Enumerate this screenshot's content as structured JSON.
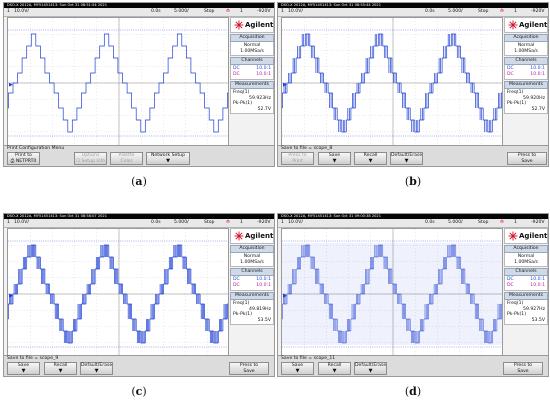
{
  "panels": [
    {
      "id": "a",
      "caption": "a",
      "title": "DSO-X 2012A, MY51451413: Sun Oct 31 08:51:54 2021",
      "status": {
        "ch": "1",
        "volts": "10.0V/",
        "time": "0.0s",
        "timebase": "5.000/",
        "mode": "Stop",
        "trig_ch": "1",
        "trig_level": "-920V"
      },
      "brand": "Agilent",
      "acq_header": "Acquisition",
      "acq_mode": "Normal",
      "acq_rate": "1.00MSa/s",
      "channels_header": "Channels",
      "ch1": {
        "label": "DC",
        "value": "10.0:1"
      },
      "ch2": {
        "label": "DC",
        "value": "10.0:1"
      },
      "meas_header": "Measurements",
      "freq_label": "Freq(1)",
      "freq_value": "59.923Hz",
      "pkpk_label": "Pk-Pk(1)",
      "pkpk_value": "52.7V",
      "menu_label": "Print Configuration Menu",
      "keys": [
        {
          "label": "Print to",
          "sub": "NETPRT0",
          "dim": false,
          "icon": "printer-icon"
        },
        {
          "label": "Options",
          "sub": "Setup Info",
          "dim": true,
          "icon": "checkbox-icon"
        },
        {
          "label": "Palette",
          "sub": "Color",
          "dim": true,
          "icon": ""
        },
        {
          "label": "Network Setup",
          "sub": "",
          "dim": false,
          "icon": "arrow-down-icon"
        }
      ]
    },
    {
      "id": "b",
      "caption": "b",
      "title": "DSO-X 2012A, MY51451413: Sun Oct 31 08:55:44 2021",
      "status": {
        "ch": "1",
        "volts": "10.0V/",
        "time": "0.0s",
        "timebase": "5.000/",
        "mode": "Stop",
        "trig_ch": "1",
        "trig_level": "-920V"
      },
      "brand": "Agilent",
      "acq_header": "Acquisition",
      "acq_mode": "Normal",
      "acq_rate": "1.00MSa/s",
      "channels_header": "Channels",
      "ch1": {
        "label": "DC",
        "value": "10.0:1"
      },
      "ch2": {
        "label": "DC",
        "value": "10.0:1"
      },
      "meas_header": "Measurements",
      "freq_label": "Freq(1)",
      "freq_value": "59.920Hz",
      "pkpk_label": "Pk-Pk(1)",
      "pkpk_value": "52.7V",
      "menu_label": "Save to file = scope_8",
      "keys": [
        {
          "label": "Press to",
          "sub": "Print",
          "dim": true,
          "icon": ""
        },
        {
          "label": "Save",
          "sub": "",
          "dim": false,
          "icon": "arrow-down-icon"
        },
        {
          "label": "Recall",
          "sub": "",
          "dim": false,
          "icon": "arrow-down-icon"
        },
        {
          "label": "Default/Erase",
          "sub": "",
          "dim": false,
          "icon": "arrow-down-icon"
        },
        {
          "label": "Press to",
          "sub": "Save",
          "dim": false,
          "icon": "",
          "right": true
        }
      ]
    },
    {
      "id": "c",
      "caption": "c",
      "title": "DSO-X 2012A, MY51451413: Sun Oct 31 08:58:07 2021",
      "status": {
        "ch": "1",
        "volts": "10.0V/",
        "time": "0.0s",
        "timebase": "5.000/",
        "mode": "Stop",
        "trig_ch": "1",
        "trig_level": "-920V"
      },
      "brand": "Agilent",
      "acq_header": "Acquisition",
      "acq_mode": "Normal",
      "acq_rate": "1.00MSa/s",
      "channels_header": "Channels",
      "ch1": {
        "label": "DC",
        "value": "10.0:1"
      },
      "ch2": {
        "label": "DC",
        "value": "10.0:1"
      },
      "meas_header": "Measurements",
      "freq_label": "Freq(1)",
      "freq_value": "49.819Hz",
      "pkpk_label": "Pk-Pk(1)",
      "pkpk_value": "53.5V",
      "menu_label": "Save to file = scope_9",
      "keys": [
        {
          "label": "Save",
          "sub": "",
          "dim": false,
          "icon": "arrow-down-icon"
        },
        {
          "label": "Recall",
          "sub": "",
          "dim": false,
          "icon": "arrow-down-icon"
        },
        {
          "label": "Default/Erase",
          "sub": "",
          "dim": false,
          "icon": "arrow-down-icon"
        },
        {
          "label": "Press to",
          "sub": "Save",
          "dim": false,
          "icon": "",
          "right": true
        }
      ]
    },
    {
      "id": "d",
      "caption": "d",
      "title": "DSO-X 2012A, MY51451413: Sun Oct 31 09:00:38 2021",
      "status": {
        "ch": "1",
        "volts": "10.0V/",
        "time": "0.0s",
        "timebase": "5.000/",
        "mode": "Stop",
        "trig_ch": "1",
        "trig_level": "-920V"
      },
      "brand": "Agilent",
      "acq_header": "Acquisition",
      "acq_mode": "Normal",
      "acq_rate": "1.00MSa/s",
      "channels_header": "Channels",
      "ch1": {
        "label": "DC",
        "value": "10.0:1"
      },
      "ch2": {
        "label": "DC",
        "value": "10.0:1"
      },
      "meas_header": "Measurements",
      "freq_label": "Freq(1)",
      "freq_value": "59.927Hz",
      "pkpk_label": "Pk-Pk(1)",
      "pkpk_value": "53.5V",
      "menu_label": "Save to file = scope_11",
      "keys": [
        {
          "label": "Save",
          "sub": "",
          "dim": false,
          "icon": "arrow-down-icon"
        },
        {
          "label": "Recall",
          "sub": "",
          "dim": false,
          "icon": "arrow-down-icon"
        },
        {
          "label": "Default/Erase",
          "sub": "",
          "dim": false,
          "icon": "arrow-down-icon"
        },
        {
          "label": "Press to",
          "sub": "Save",
          "dim": false,
          "icon": "",
          "right": true
        }
      ]
    }
  ],
  "colors": {
    "trace": "#1f3fd6",
    "grid": "#b9b9b9",
    "ch1": "#1f4fd8",
    "ch2": "#c0169f",
    "trigger": "#d0006f"
  }
}
